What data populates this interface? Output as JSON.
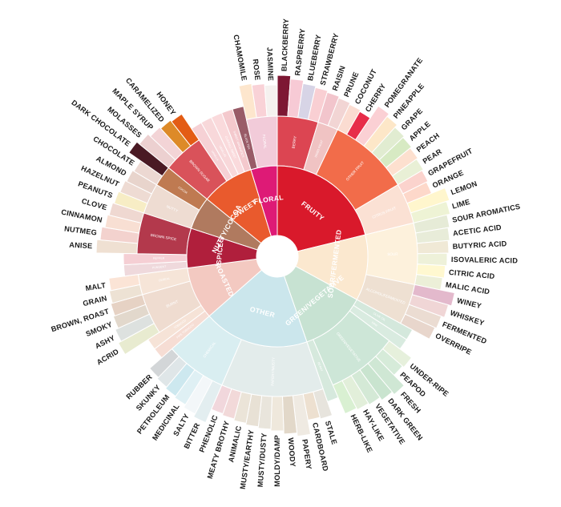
{
  "chart_data": {
    "type": "sunburst",
    "title": "",
    "start_angle_deg": 0,
    "direction": "clockwise",
    "categories": [
      {
        "name": "FRUITY",
        "color": "#d9192b",
        "children": [
          {
            "name": "BERRY",
            "color": "#dc4552",
            "children": [
              {
                "name": "BLACKBERRY",
                "color": "#7d1733"
              },
              {
                "name": "RASPBERRY",
                "color": "#f7cad5"
              },
              {
                "name": "BLUEBERRY",
                "color": "#d7d4e6"
              },
              {
                "name": "STRAWBERRY",
                "color": "#f9cfd3"
              }
            ]
          },
          {
            "name": "DRIED FRUIT",
            "color": "#f0c3c3",
            "children": [
              {
                "name": "RAISIN",
                "color": "#f2c5cc"
              },
              {
                "name": "PRUNE",
                "color": "#f2d5d4"
              }
            ]
          },
          {
            "name": "OTHER FRUIT",
            "color": "#f26c4a",
            "children": [
              {
                "name": "COCONUT",
                "color": "#fbdcd1"
              },
              {
                "name": "CHERRY",
                "color": "#e72d4a"
              },
              {
                "name": "POMEGRANATE",
                "color": "#fbd0d4"
              },
              {
                "name": "PINEAPPLE",
                "color": "#fde7c8"
              },
              {
                "name": "GRAPE",
                "color": "#e1ecd1"
              },
              {
                "name": "APPLE",
                "color": "#d7eac3"
              },
              {
                "name": "PEACH",
                "color": "#fde0cf"
              },
              {
                "name": "PEAR",
                "color": "#e9f0d6"
              }
            ]
          },
          {
            "name": "CITRUS FRUIT",
            "color": "#fbe1d4",
            "children": [
              {
                "name": "GRAPEFRUIT",
                "color": "#fbd3cd"
              },
              {
                "name": "ORANGE",
                "color": "#fdd8ca"
              },
              {
                "name": "LEMON",
                "color": "#fff6cd"
              },
              {
                "name": "LIME",
                "color": "#eef3d5"
              }
            ]
          }
        ]
      },
      {
        "name": "SOUR/FERMENTED",
        "color": "#fbe8cf",
        "children": [
          {
            "name": "SOUR",
            "color": "#fdf1dc",
            "children": [
              {
                "name": "SOUR AROMATICS",
                "color": "#e6ebd7"
              },
              {
                "name": "ACETIC ACID",
                "color": "#e8ecd9"
              },
              {
                "name": "BUTYRIC ACID",
                "color": "#f0e9d6"
              },
              {
                "name": "ISOVALERIC ACID",
                "color": "#eef1d9"
              },
              {
                "name": "CITRIC ACID",
                "color": "#fff8d0"
              },
              {
                "name": "MALIC ACID",
                "color": "#ecefd8"
              }
            ]
          },
          {
            "name": "ALCOHOL/FERMENTED",
            "color": "#eee0d2",
            "children": [
              {
                "name": "WINEY",
                "color": "#e3b9cc"
              },
              {
                "name": "WHISKEY",
                "color": "#f0d6d6"
              },
              {
                "name": "FERMENTED",
                "color": "#ebdcd2"
              },
              {
                "name": "OVERRIPE",
                "color": "#e8d6cc"
              }
            ]
          }
        ]
      },
      {
        "name": "GREEN/VEGETATIVE",
        "color": "#c7e2d2",
        "children": [
          {
            "name": "OLIVE OIL",
            "color": "#d4e8dc"
          },
          {
            "name": "RAW",
            "color": "#d9ebe0"
          },
          {
            "name": "GREEN/VEGETATIVE",
            "color": "#cde6d7",
            "children": [
              {
                "name": "UNDER-RIPE",
                "color": "#e6f0dc"
              },
              {
                "name": "PEAPOD",
                "color": "#d6ebd9"
              },
              {
                "name": "FRESH",
                "color": "#cfe7d4"
              },
              {
                "name": "DARK GREEN",
                "color": "#c9e4cf"
              },
              {
                "name": "VEGETATIVE",
                "color": "#d4e9d6"
              },
              {
                "name": "HAY-LIKE",
                "color": "#e2efda"
              },
              {
                "name": "HERB-LIKE",
                "color": "#d9f0d2"
              }
            ]
          },
          {
            "name": "BEANY",
            "color": "#d6e9dd"
          }
        ]
      },
      {
        "name": "OTHER",
        "color": "#cbe6ec",
        "children": [
          {
            "name": "PAPERY/MUSTY",
            "color": "#e3eceb",
            "children": [
              {
                "name": "STALE",
                "color": "#e7e4dd"
              },
              {
                "name": "CARDBOARD",
                "color": "#ede0d0"
              },
              {
                "name": "PAPERY",
                "color": "#efeae2"
              },
              {
                "name": "WOODY",
                "color": "#e2d8c9"
              },
              {
                "name": "MOLDY/DAMP",
                "color": "#efe8dc"
              },
              {
                "name": "MUSTY/DUSTY",
                "color": "#e9e5dc"
              },
              {
                "name": "MUSTY/EARTHY",
                "color": "#e8e1d5"
              },
              {
                "name": "ANIMALIC",
                "color": "#ebe4d8"
              },
              {
                "name": "MEATY BROTHY",
                "color": "#f2d9d9"
              },
              {
                "name": "PHENOLIC",
                "color": "#f1d7dc"
              }
            ]
          },
          {
            "name": "CHEMICAL",
            "color": "#d9eef1",
            "children": [
              {
                "name": "BITTER",
                "color": "#e3eef0"
              },
              {
                "name": "SALTY",
                "color": "#f3f7f9"
              },
              {
                "name": "MEDICINAL",
                "color": "#dff0f4"
              },
              {
                "name": "PETROLEUM",
                "color": "#cde8ef"
              },
              {
                "name": "SKUNKY",
                "color": "#dfe6e8"
              },
              {
                "name": "RUBBER",
                "color": "#d3d6d8"
              }
            ]
          }
        ]
      },
      {
        "name": "ROASTED",
        "color": "#f3c9c1",
        "children": [
          {
            "name": "PIPE TOBACCO",
            "color": "#f6ddd4"
          },
          {
            "name": "TOBACCO",
            "color": "#f6e3d7"
          },
          {
            "name": "BURNT",
            "color": "#efdcd0",
            "children": [
              {
                "name": "ACRID",
                "color": "#e8ebd0"
              },
              {
                "name": "ASHY",
                "color": "#dde1df"
              },
              {
                "name": "SMOKY",
                "color": "#e2d8cc"
              },
              {
                "name": "BROWN, ROAST",
                "color": "#e6d2c4"
              }
            ]
          },
          {
            "name": "CEREAL",
            "color": "#f6e5d8",
            "children": [
              {
                "name": "GRAIN",
                "color": "#ede2d4"
              },
              {
                "name": "MALT",
                "color": "#fbe4d6"
              }
            ]
          }
        ]
      },
      {
        "name": "SPICES",
        "color": "#b01f3c",
        "children": [
          {
            "name": "PUNGENT",
            "color": "#efd9dc"
          },
          {
            "name": "PEPPER",
            "color": "#f5cfd4"
          },
          {
            "name": "BROWN SPICE",
            "color": "#b3394c",
            "children": [
              {
                "name": "ANISE",
                "color": "#efe0d2"
              },
              {
                "name": "NUTMEG",
                "color": "#f3d2ce"
              },
              {
                "name": "CINNAMON",
                "color": "#f8dfd3"
              },
              {
                "name": "CLOVE",
                "color": "#efd8d1"
              }
            ]
          }
        ]
      },
      {
        "name": "NUTTY/COCOA",
        "color": "#b07a5f",
        "children": [
          {
            "name": "NUTTY",
            "color": "#eedcd2",
            "children": [
              {
                "name": "PEANUTS",
                "color": "#f7edc5"
              },
              {
                "name": "HAZELNUT",
                "color": "#eedbd3"
              },
              {
                "name": "ALMOND",
                "color": "#e8d4cc"
              }
            ]
          },
          {
            "name": "COCOA",
            "color": "#bf7a51",
            "children": [
              {
                "name": "CHOCOLATE",
                "color": "#ecd8d2"
              },
              {
                "name": "DARK CHOCOLATE",
                "color": "#4a1a24"
              }
            ]
          }
        ]
      },
      {
        "name": "SWEET",
        "color": "#e95a2d",
        "children": [
          {
            "name": "BROWN SUGAR",
            "color": "#d9525a",
            "children": [
              {
                "name": "MOLASSES",
                "color": "#ecd0d0"
              },
              {
                "name": "MAPLE SYRUP",
                "color": "#f3d4d6"
              },
              {
                "name": "CARAMELIZED",
                "color": "#dd8a28"
              },
              {
                "name": "HONEY",
                "color": "#e35c14"
              }
            ]
          },
          {
            "name": "VANILLA",
            "color": "#f6d1d5"
          },
          {
            "name": "VANILLIN",
            "color": "#f8d8da"
          },
          {
            "name": "OVERALL SWEET",
            "color": "#fadadc"
          },
          {
            "name": "SWEET AROMATICS",
            "color": "#f4c9cd"
          }
        ]
      },
      {
        "name": "FLORAL",
        "color": "#de1a76",
        "children": [
          {
            "name": "BLACK TEA",
            "color": "#995b67"
          },
          {
            "name": "FLORAL",
            "color": "#f2cbd9",
            "children": [
              {
                "name": "CHAMOMILE",
                "color": "#fde6cd"
              },
              {
                "name": "ROSE",
                "color": "#f9d2d7"
              },
              {
                "name": "JASMINE",
                "color": "#f5f1ef"
              }
            ]
          }
        ]
      }
    ]
  }
}
